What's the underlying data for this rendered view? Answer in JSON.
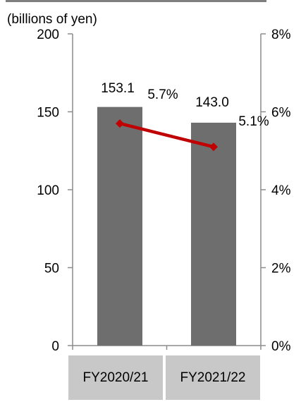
{
  "chart_data": {
    "type": "bar",
    "unit_label": "(billions of yen)",
    "categories": [
      "FY2020/21",
      "FY2021/22"
    ],
    "series": [
      {
        "values": [
          153.1,
          143.0
        ],
        "value_labels": [
          "153.1",
          "143.0"
        ],
        "axis": "left"
      },
      {
        "type": "line",
        "values": [
          5.7,
          5.1
        ],
        "value_labels": [
          "5.7%",
          "5.1%"
        ],
        "axis": "right"
      }
    ],
    "y_left": {
      "range": [
        0,
        200
      ],
      "ticks": [
        0,
        50,
        100,
        150,
        200
      ],
      "tick_labels": [
        "0",
        "50",
        "100",
        "150",
        "200"
      ]
    },
    "y_right": {
      "range": [
        0,
        8
      ],
      "ticks": [
        0,
        2,
        4,
        6,
        8
      ],
      "tick_labels": [
        "0%",
        "2%",
        "4%",
        "6%",
        "8%"
      ]
    },
    "grid": false,
    "legend": "none",
    "colors": {
      "bar": "#6e6e6e",
      "line": "#c00000",
      "axis": "#8c8c8c",
      "category_box": "#c8c8c8",
      "top_rule": "#7f7f7f"
    }
  }
}
